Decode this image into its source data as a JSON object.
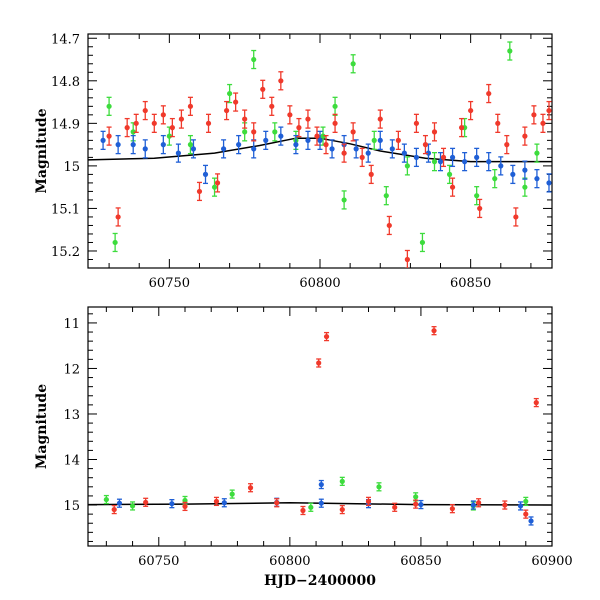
{
  "chart_data": [
    {
      "type": "scatter",
      "title": "",
      "xlabel": "",
      "ylabel": "Magnitude",
      "xlim": [
        60723,
        60877
      ],
      "ylim": [
        15.24,
        14.69
      ],
      "y_inverted": true,
      "xticks": [
        60750,
        60800,
        60850
      ],
      "yticks": [
        14.7,
        14.8,
        14.9,
        15,
        15.1,
        15.2
      ],
      "ytick_labels": [
        "14.7",
        "14.8",
        "14.9",
        "15",
        "15.1",
        "15.2"
      ],
      "series_colors": {
        "red": "#f0392b",
        "blue": "#1f5fd6",
        "green": "#3ddc3d",
        "model": "#000000"
      },
      "model_curve": {
        "x": [
          60723,
          60745,
          60765,
          60780,
          60792,
          60800,
          60810,
          60820,
          60835,
          60850,
          60877
        ],
        "y": [
          14.986,
          14.982,
          14.97,
          14.952,
          14.935,
          14.935,
          14.948,
          14.965,
          14.982,
          14.99,
          14.99
        ]
      },
      "series": [
        {
          "color_key": "green",
          "points": [
            {
              "x": 60730,
              "y": 14.86
            },
            {
              "x": 60732,
              "y": 15.18
            },
            {
              "x": 60738,
              "y": 14.92
            },
            {
              "x": 60750,
              "y": 14.93
            },
            {
              "x": 60757,
              "y": 14.95
            },
            {
              "x": 60765,
              "y": 15.05
            },
            {
              "x": 60770,
              "y": 14.83
            },
            {
              "x": 60775,
              "y": 14.92
            },
            {
              "x": 60778,
              "y": 14.75
            },
            {
              "x": 60785,
              "y": 14.92
            },
            {
              "x": 60792,
              "y": 14.94
            },
            {
              "x": 60801,
              "y": 14.93
            },
            {
              "x": 60805,
              "y": 14.86
            },
            {
              "x": 60808,
              "y": 15.08
            },
            {
              "x": 60811,
              "y": 14.76
            },
            {
              "x": 60818,
              "y": 14.94
            },
            {
              "x": 60822,
              "y": 15.07
            },
            {
              "x": 60829,
              "y": 15.0
            },
            {
              "x": 60834,
              "y": 15.18
            },
            {
              "x": 60838,
              "y": 14.99
            },
            {
              "x": 60843,
              "y": 15.02
            },
            {
              "x": 60848,
              "y": 14.91
            },
            {
              "x": 60852,
              "y": 15.07
            },
            {
              "x": 60858,
              "y": 15.03
            },
            {
              "x": 60863,
              "y": 14.73
            },
            {
              "x": 60868,
              "y": 15.05
            },
            {
              "x": 60872,
              "y": 14.97
            }
          ]
        },
        {
          "color_key": "blue",
          "points": [
            {
              "x": 60728,
              "y": 14.94
            },
            {
              "x": 60733,
              "y": 14.95
            },
            {
              "x": 60738,
              "y": 14.95
            },
            {
              "x": 60742,
              "y": 14.96
            },
            {
              "x": 60748,
              "y": 14.95
            },
            {
              "x": 60753,
              "y": 14.97
            },
            {
              "x": 60758,
              "y": 14.96
            },
            {
              "x": 60762,
              "y": 15.02
            },
            {
              "x": 60768,
              "y": 14.96
            },
            {
              "x": 60773,
              "y": 14.95
            },
            {
              "x": 60778,
              "y": 14.96
            },
            {
              "x": 60782,
              "y": 14.94
            },
            {
              "x": 60787,
              "y": 14.93
            },
            {
              "x": 60792,
              "y": 14.95
            },
            {
              "x": 60796,
              "y": 14.94
            },
            {
              "x": 60800,
              "y": 14.94
            },
            {
              "x": 60804,
              "y": 14.96
            },
            {
              "x": 60808,
              "y": 14.95
            },
            {
              "x": 60812,
              "y": 14.96
            },
            {
              "x": 60816,
              "y": 14.97
            },
            {
              "x": 60820,
              "y": 14.94
            },
            {
              "x": 60824,
              "y": 14.96
            },
            {
              "x": 60828,
              "y": 14.97
            },
            {
              "x": 60832,
              "y": 14.98
            },
            {
              "x": 60836,
              "y": 14.97
            },
            {
              "x": 60840,
              "y": 14.99
            },
            {
              "x": 60844,
              "y": 14.98
            },
            {
              "x": 60848,
              "y": 14.99
            },
            {
              "x": 60852,
              "y": 14.98
            },
            {
              "x": 60856,
              "y": 14.99
            },
            {
              "x": 60860,
              "y": 15.0
            },
            {
              "x": 60864,
              "y": 15.02
            },
            {
              "x": 60868,
              "y": 15.01
            },
            {
              "x": 60872,
              "y": 15.03
            },
            {
              "x": 60876,
              "y": 15.04
            }
          ]
        },
        {
          "color_key": "red",
          "points": [
            {
              "x": 60730,
              "y": 14.93
            },
            {
              "x": 60733,
              "y": 15.12
            },
            {
              "x": 60736,
              "y": 14.91
            },
            {
              "x": 60739,
              "y": 14.9
            },
            {
              "x": 60742,
              "y": 14.87
            },
            {
              "x": 60745,
              "y": 14.9
            },
            {
              "x": 60748,
              "y": 14.88
            },
            {
              "x": 60751,
              "y": 14.91
            },
            {
              "x": 60754,
              "y": 14.89
            },
            {
              "x": 60757,
              "y": 14.86
            },
            {
              "x": 60760,
              "y": 15.06
            },
            {
              "x": 60763,
              "y": 14.9
            },
            {
              "x": 60766,
              "y": 15.04
            },
            {
              "x": 60769,
              "y": 14.87
            },
            {
              "x": 60772,
              "y": 14.85
            },
            {
              "x": 60775,
              "y": 14.89
            },
            {
              "x": 60778,
              "y": 14.92
            },
            {
              "x": 60781,
              "y": 14.82
            },
            {
              "x": 60784,
              "y": 14.86
            },
            {
              "x": 60787,
              "y": 14.8
            },
            {
              "x": 60790,
              "y": 14.88
            },
            {
              "x": 60793,
              "y": 14.91
            },
            {
              "x": 60796,
              "y": 14.89
            },
            {
              "x": 60799,
              "y": 14.93
            },
            {
              "x": 60802,
              "y": 14.95
            },
            {
              "x": 60805,
              "y": 14.9
            },
            {
              "x": 60808,
              "y": 14.97
            },
            {
              "x": 60811,
              "y": 14.92
            },
            {
              "x": 60814,
              "y": 14.98
            },
            {
              "x": 60817,
              "y": 15.02
            },
            {
              "x": 60820,
              "y": 14.89
            },
            {
              "x": 60823,
              "y": 15.14
            },
            {
              "x": 60826,
              "y": 14.94
            },
            {
              "x": 60829,
              "y": 15.22
            },
            {
              "x": 60832,
              "y": 14.9
            },
            {
              "x": 60835,
              "y": 14.95
            },
            {
              "x": 60838,
              "y": 14.92
            },
            {
              "x": 60841,
              "y": 14.98
            },
            {
              "x": 60844,
              "y": 15.05
            },
            {
              "x": 60847,
              "y": 14.91
            },
            {
              "x": 60850,
              "y": 14.87
            },
            {
              "x": 60853,
              "y": 15.1
            },
            {
              "x": 60856,
              "y": 14.83
            },
            {
              "x": 60859,
              "y": 14.9
            },
            {
              "x": 60862,
              "y": 14.95
            },
            {
              "x": 60865,
              "y": 15.12
            },
            {
              "x": 60868,
              "y": 14.93
            },
            {
              "x": 60871,
              "y": 14.88
            },
            {
              "x": 60874,
              "y": 14.9
            },
            {
              "x": 60876,
              "y": 14.87
            }
          ]
        }
      ]
    },
    {
      "type": "scatter",
      "title": "",
      "xlabel": "HJD−2400000",
      "ylabel": "Magnitude",
      "xlim": [
        60723,
        60900
      ],
      "ylim": [
        15.9,
        10.65
      ],
      "y_inverted": true,
      "xticks": [
        60750,
        60800,
        60850,
        60900
      ],
      "yticks": [
        11,
        12,
        13,
        14,
        15
      ],
      "ytick_labels": [
        "11",
        "12",
        "13",
        "14",
        "15"
      ],
      "series_colors": {
        "red": "#f0392b",
        "blue": "#1f5fd6",
        "green": "#3ddc3d",
        "model": "#000000"
      },
      "model_curve": {
        "x": [
          60723,
          60760,
          60800,
          60850,
          60900
        ],
        "y": [
          14.99,
          14.98,
          14.95,
          14.99,
          15.0
        ]
      },
      "series": [
        {
          "color_key": "green",
          "points": [
            {
              "x": 60730,
              "y": 14.88
            },
            {
              "x": 60740,
              "y": 15.02
            },
            {
              "x": 60760,
              "y": 14.9
            },
            {
              "x": 60778,
              "y": 14.76
            },
            {
              "x": 60808,
              "y": 15.05
            },
            {
              "x": 60820,
              "y": 14.48
            },
            {
              "x": 60834,
              "y": 14.6
            },
            {
              "x": 60848,
              "y": 14.82
            },
            {
              "x": 60870,
              "y": 15.02
            },
            {
              "x": 60890,
              "y": 14.92
            }
          ]
        },
        {
          "color_key": "blue",
          "points": [
            {
              "x": 60735,
              "y": 14.96
            },
            {
              "x": 60755,
              "y": 14.97
            },
            {
              "x": 60775,
              "y": 14.95
            },
            {
              "x": 60795,
              "y": 14.94
            },
            {
              "x": 60812,
              "y": 14.55
            },
            {
              "x": 60812,
              "y": 14.96
            },
            {
              "x": 60830,
              "y": 14.97
            },
            {
              "x": 60850,
              "y": 14.99
            },
            {
              "x": 60870,
              "y": 15.0
            },
            {
              "x": 60888,
              "y": 15.02
            },
            {
              "x": 60892,
              "y": 15.35
            }
          ]
        },
        {
          "color_key": "red",
          "points": [
            {
              "x": 60733,
              "y": 15.1
            },
            {
              "x": 60745,
              "y": 14.94
            },
            {
              "x": 60760,
              "y": 15.03
            },
            {
              "x": 60772,
              "y": 14.92
            },
            {
              "x": 60785,
              "y": 14.62
            },
            {
              "x": 60795,
              "y": 14.95
            },
            {
              "x": 60805,
              "y": 15.12
            },
            {
              "x": 60811,
              "y": 11.88
            },
            {
              "x": 60814,
              "y": 11.3
            },
            {
              "x": 60820,
              "y": 15.1
            },
            {
              "x": 60830,
              "y": 14.92
            },
            {
              "x": 60840,
              "y": 15.05
            },
            {
              "x": 60848,
              "y": 14.98
            },
            {
              "x": 60855,
              "y": 11.17
            },
            {
              "x": 60862,
              "y": 15.08
            },
            {
              "x": 60872,
              "y": 14.95
            },
            {
              "x": 60882,
              "y": 15.0
            },
            {
              "x": 60890,
              "y": 15.2
            },
            {
              "x": 60894,
              "y": 12.75
            }
          ]
        }
      ]
    }
  ]
}
